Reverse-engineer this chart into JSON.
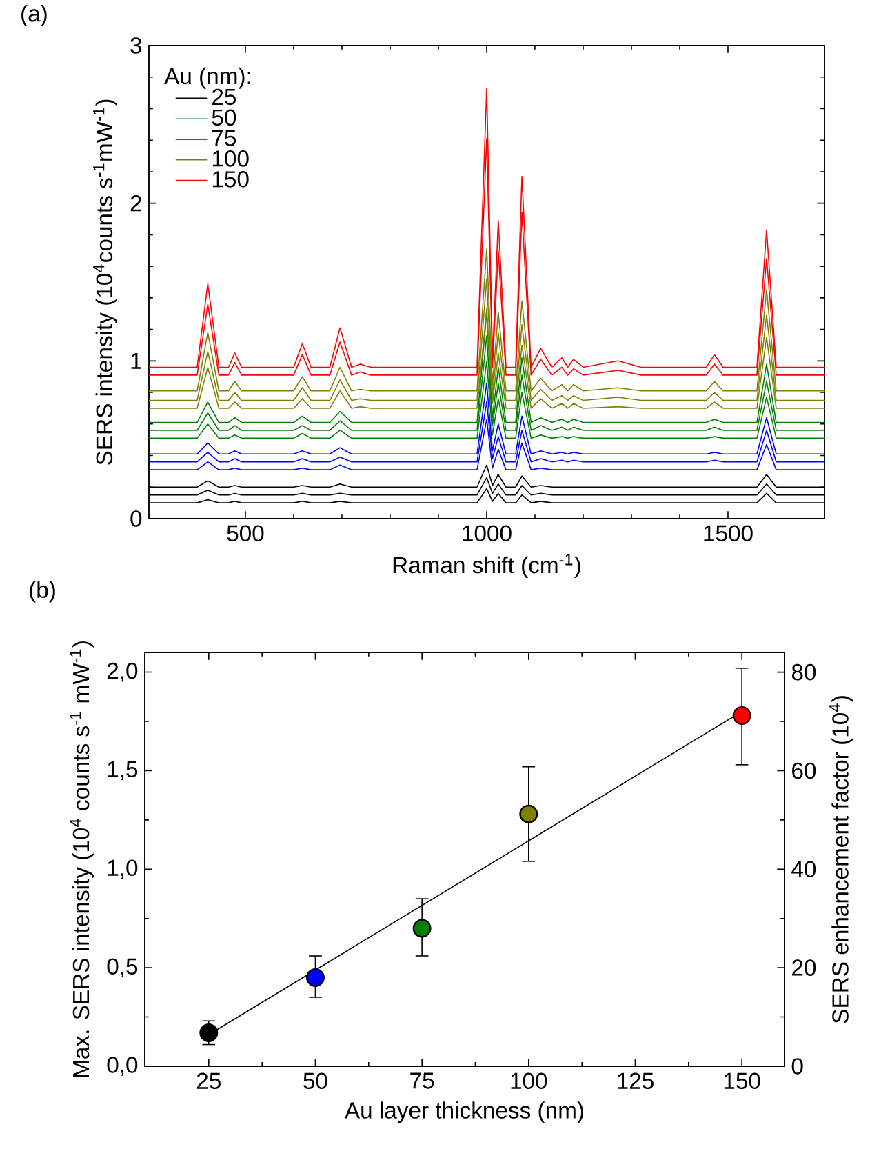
{
  "chart_data": [
    {
      "type": "line",
      "title": "(a)",
      "xlabel": "Raman shift (cm$^{-1}$)",
      "ylabel": "SERS intensity (10$^{4}$counts s$^{-1}$mW$^{-1}$)",
      "legend_title": "Au (nm):",
      "legend": "top left",
      "xlim": [
        300,
        1700
      ],
      "xticks": [
        500,
        1000,
        1500
      ],
      "ylim": [
        0,
        3
      ],
      "yticks": [
        0,
        1,
        2,
        3
      ],
      "x": [
        300,
        400,
        422,
        445,
        465,
        478,
        492,
        600,
        618,
        636,
        675,
        696,
        720,
        738,
        760,
        980,
        1000,
        1012,
        1024,
        1040,
        1060,
        1073,
        1092,
        1112,
        1135,
        1156,
        1168,
        1180,
        1200,
        1272,
        1320,
        1455,
        1472,
        1490,
        1560,
        1580,
        1600,
        1700
      ],
      "series": [
        {
          "name": "25",
          "color": "#000000",
          "values": [
            0.2,
            0.2,
            0.24,
            0.2,
            0.2,
            0.21,
            0.2,
            0.2,
            0.21,
            0.2,
            0.2,
            0.22,
            0.2,
            0.2,
            0.2,
            0.2,
            0.34,
            0.21,
            0.28,
            0.2,
            0.2,
            0.27,
            0.2,
            0.21,
            0.2,
            0.2,
            0.2,
            0.2,
            0.2,
            0.2,
            0.2,
            0.2,
            0.2,
            0.2,
            0.2,
            0.28,
            0.2,
            0.2
          ]
        },
        {
          "color": "#000000",
          "values": [
            0.15,
            0.15,
            0.18,
            0.15,
            0.15,
            0.16,
            0.15,
            0.15,
            0.16,
            0.15,
            0.15,
            0.16,
            0.15,
            0.15,
            0.15,
            0.15,
            0.26,
            0.16,
            0.22,
            0.15,
            0.15,
            0.21,
            0.15,
            0.16,
            0.15,
            0.15,
            0.15,
            0.15,
            0.15,
            0.15,
            0.15,
            0.15,
            0.15,
            0.15,
            0.15,
            0.22,
            0.15,
            0.15
          ]
        },
        {
          "color": "#000000",
          "values": [
            0.1,
            0.1,
            0.12,
            0.1,
            0.1,
            0.11,
            0.1,
            0.1,
            0.11,
            0.1,
            0.1,
            0.11,
            0.1,
            0.1,
            0.1,
            0.1,
            0.19,
            0.11,
            0.16,
            0.1,
            0.1,
            0.15,
            0.1,
            0.11,
            0.1,
            0.1,
            0.1,
            0.1,
            0.1,
            0.1,
            0.1,
            0.1,
            0.1,
            0.1,
            0.1,
            0.16,
            0.1,
            0.1
          ]
        },
        {
          "name": "50",
          "color": "#008000",
          "values": [
            0.61,
            0.61,
            0.74,
            0.61,
            0.61,
            0.64,
            0.61,
            0.61,
            0.65,
            0.61,
            0.61,
            0.68,
            0.61,
            0.61,
            0.61,
            0.61,
            1.31,
            0.64,
            0.96,
            0.61,
            0.61,
            1.02,
            0.61,
            0.64,
            0.61,
            0.63,
            0.61,
            0.63,
            0.61,
            0.61,
            0.61,
            0.61,
            0.63,
            0.61,
            0.61,
            0.98,
            0.61,
            0.61
          ]
        },
        {
          "color": "#008000",
          "values": [
            0.56,
            0.56,
            0.67,
            0.56,
            0.56,
            0.59,
            0.56,
            0.56,
            0.59,
            0.56,
            0.56,
            0.62,
            0.56,
            0.56,
            0.56,
            0.56,
            1.16,
            0.59,
            0.86,
            0.56,
            0.56,
            0.91,
            0.56,
            0.59,
            0.56,
            0.58,
            0.56,
            0.58,
            0.56,
            0.56,
            0.56,
            0.56,
            0.58,
            0.56,
            0.56,
            0.87,
            0.56,
            0.56
          ]
        },
        {
          "color": "#008000",
          "values": [
            0.51,
            0.51,
            0.6,
            0.51,
            0.51,
            0.53,
            0.51,
            0.51,
            0.54,
            0.51,
            0.51,
            0.56,
            0.51,
            0.51,
            0.51,
            0.51,
            1.0,
            0.53,
            0.76,
            0.51,
            0.51,
            0.8,
            0.51,
            0.53,
            0.51,
            0.52,
            0.51,
            0.52,
            0.51,
            0.51,
            0.51,
            0.51,
            0.52,
            0.51,
            0.51,
            0.77,
            0.51,
            0.51
          ]
        },
        {
          "name": "75",
          "color": "#0000ff",
          "values": [
            0.41,
            0.41,
            0.48,
            0.41,
            0.41,
            0.43,
            0.41,
            0.41,
            0.43,
            0.41,
            0.41,
            0.45,
            0.41,
            0.41,
            0.41,
            0.41,
            0.86,
            0.43,
            0.6,
            0.41,
            0.41,
            0.65,
            0.41,
            0.43,
            0.41,
            0.42,
            0.41,
            0.42,
            0.41,
            0.41,
            0.41,
            0.41,
            0.42,
            0.41,
            0.41,
            0.64,
            0.41,
            0.41
          ]
        },
        {
          "color": "#0000ff",
          "values": [
            0.36,
            0.36,
            0.42,
            0.36,
            0.36,
            0.38,
            0.36,
            0.36,
            0.38,
            0.36,
            0.36,
            0.39,
            0.36,
            0.36,
            0.36,
            0.36,
            0.74,
            0.38,
            0.52,
            0.36,
            0.36,
            0.56,
            0.36,
            0.38,
            0.36,
            0.37,
            0.36,
            0.37,
            0.36,
            0.36,
            0.36,
            0.36,
            0.37,
            0.36,
            0.36,
            0.56,
            0.36,
            0.36
          ]
        },
        {
          "color": "#0000ff",
          "values": [
            0.31,
            0.31,
            0.36,
            0.31,
            0.31,
            0.32,
            0.31,
            0.31,
            0.32,
            0.31,
            0.31,
            0.34,
            0.31,
            0.31,
            0.31,
            0.31,
            0.63,
            0.32,
            0.44,
            0.31,
            0.31,
            0.48,
            0.31,
            0.32,
            0.31,
            0.31,
            0.31,
            0.31,
            0.31,
            0.31,
            0.31,
            0.31,
            0.31,
            0.31,
            0.31,
            0.47,
            0.31,
            0.31
          ]
        },
        {
          "name": "100",
          "color": "#808000",
          "values": [
            0.81,
            0.81,
            1.18,
            0.81,
            0.81,
            0.87,
            0.81,
            0.81,
            0.9,
            0.81,
            0.81,
            0.96,
            0.81,
            0.82,
            0.81,
            0.81,
            1.71,
            0.85,
            1.31,
            0.81,
            0.81,
            1.38,
            0.81,
            0.89,
            0.81,
            0.85,
            0.81,
            0.85,
            0.81,
            0.83,
            0.81,
            0.81,
            0.87,
            0.81,
            0.81,
            1.45,
            0.81,
            0.81
          ]
        },
        {
          "color": "#808000",
          "values": [
            0.75,
            0.75,
            1.06,
            0.75,
            0.75,
            0.8,
            0.75,
            0.75,
            0.83,
            0.75,
            0.75,
            0.88,
            0.75,
            0.76,
            0.75,
            0.75,
            1.52,
            0.78,
            1.18,
            0.75,
            0.75,
            1.23,
            0.75,
            0.82,
            0.75,
            0.78,
            0.75,
            0.78,
            0.75,
            0.77,
            0.75,
            0.75,
            0.8,
            0.75,
            0.75,
            1.29,
            0.75,
            0.75
          ]
        },
        {
          "color": "#808000",
          "values": [
            0.7,
            0.7,
            0.96,
            0.7,
            0.7,
            0.74,
            0.7,
            0.7,
            0.76,
            0.7,
            0.7,
            0.81,
            0.7,
            0.71,
            0.7,
            0.7,
            1.33,
            0.73,
            1.05,
            0.7,
            0.7,
            1.1,
            0.7,
            0.76,
            0.7,
            0.73,
            0.7,
            0.73,
            0.7,
            0.71,
            0.7,
            0.7,
            0.74,
            0.7,
            0.7,
            1.15,
            0.7,
            0.7
          ]
        },
        {
          "name": "150",
          "color": "#ff0000",
          "values": [
            0.96,
            0.96,
            1.49,
            0.96,
            0.96,
            1.05,
            0.96,
            0.96,
            1.11,
            0.96,
            0.96,
            1.21,
            0.96,
            0.98,
            0.96,
            0.96,
            2.73,
            1.02,
            1.89,
            0.96,
            0.96,
            2.17,
            0.96,
            1.08,
            0.96,
            1.02,
            0.96,
            1.01,
            0.96,
            1.0,
            0.96,
            0.96,
            1.04,
            0.96,
            0.96,
            1.83,
            0.96,
            0.96
          ]
        },
        {
          "color": "#ff0000",
          "values": [
            0.91,
            0.91,
            1.36,
            0.91,
            0.91,
            0.99,
            0.91,
            0.91,
            1.04,
            0.91,
            0.91,
            1.12,
            0.91,
            0.93,
            0.91,
            0.91,
            2.41,
            0.96,
            1.7,
            0.91,
            0.91,
            1.94,
            0.91,
            1.01,
            0.91,
            0.96,
            0.91,
            0.95,
            0.91,
            0.94,
            0.91,
            0.91,
            0.98,
            0.91,
            0.91,
            1.65,
            0.91,
            0.91
          ]
        }
      ]
    },
    {
      "type": "scatter",
      "title": "(b)",
      "xlabel": "Au layer thickness (nm)",
      "ylabel": "Max. SERS intensity (10$^{4}$ counts s$^{-1}$ mW$^{-1}$)",
      "y2label": "SERS enhancement factor (10$^{4}$)",
      "marker": "circle",
      "xlim": [
        10,
        160
      ],
      "xticks": [
        25,
        50,
        75,
        100,
        125,
        150
      ],
      "ylim": [
        0,
        2.1
      ],
      "yticks": [
        {
          "value": 0,
          "label": "0,0"
        },
        {
          "value": 0.5,
          "label": "0,5"
        },
        {
          "value": 1,
          "label": "1,0"
        },
        {
          "value": 1.5,
          "label": "1,5"
        },
        {
          "value": 2,
          "label": "2,0"
        }
      ],
      "y2lim": [
        0,
        84
      ],
      "y2ticks": [
        0,
        20,
        40,
        60,
        80
      ],
      "x": [
        25,
        50,
        75,
        100,
        150
      ],
      "series": [
        {
          "colors": [
            "#000000",
            "#0000ff",
            "#008000",
            "#808000",
            "#ff0000"
          ],
          "values": [
            0.17,
            0.45,
            0.7,
            1.28,
            1.78
          ],
          "errors": [
            [
              0.11,
              0.23
            ],
            [
              0.35,
              0.56
            ],
            [
              0.56,
              0.85
            ],
            [
              1.04,
              1.52
            ],
            [
              1.53,
              2.02
            ]
          ]
        },
        {
          "type": "line",
          "marker": "none",
          "color": "#000000",
          "x": [
            25,
            150
          ],
          "values": [
            0.16,
            1.8
          ]
        }
      ]
    }
  ]
}
